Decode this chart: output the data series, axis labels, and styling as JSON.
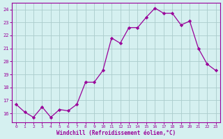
{
  "x": [
    0,
    1,
    2,
    3,
    4,
    5,
    6,
    7,
    8,
    9,
    10,
    11,
    12,
    13,
    14,
    15,
    16,
    17,
    18,
    19,
    20,
    21,
    22,
    23
  ],
  "y": [
    16.7,
    16.1,
    15.7,
    16.5,
    15.7,
    16.3,
    16.2,
    16.7,
    18.4,
    18.4,
    19.3,
    21.8,
    21.4,
    22.6,
    22.6,
    23.4,
    24.1,
    23.7,
    23.7,
    22.8,
    23.1,
    21.0,
    19.8,
    19.3
  ],
  "line_color": "#990099",
  "marker": "D",
  "marker_size": 2.2,
  "bg_color": "#d5f0f0",
  "grid_color": "#aacccc",
  "xlabel": "Windchill (Refroidissement éolien,°C)",
  "xlabel_color": "#990099",
  "tick_color": "#990099",
  "spine_color": "#990099",
  "ylim_min": 15.3,
  "ylim_max": 24.5,
  "yticks": [
    16,
    17,
    18,
    19,
    20,
    21,
    22,
    23,
    24
  ],
  "xticks": [
    0,
    1,
    2,
    3,
    4,
    5,
    6,
    7,
    8,
    9,
    10,
    11,
    12,
    13,
    14,
    15,
    16,
    17,
    18,
    19,
    20,
    21,
    22,
    23
  ]
}
